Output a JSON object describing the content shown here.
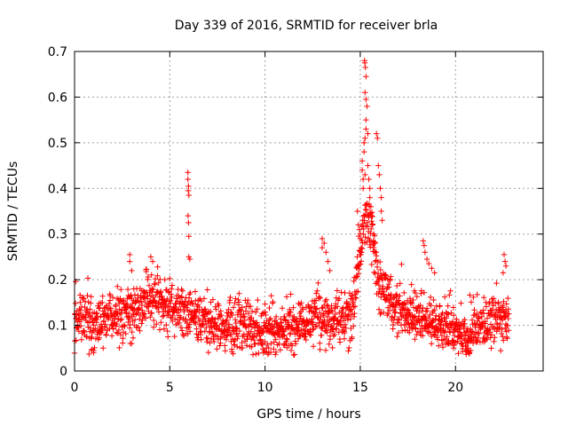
{
  "colors": {
    "series": "#ff0000",
    "grid": "#a0a0a0",
    "axis": "#000000"
  },
  "chart_data": {
    "type": "scatter",
    "title": "Day 339 of 2016, SRMTID for receiver brla",
    "xlabel": "GPS time / hours",
    "ylabel": "SRMTID / TECUs",
    "xlim": [
      0,
      24.6
    ],
    "ylim": [
      0,
      0.7
    ],
    "xticks": [
      0,
      5,
      10,
      15,
      20
    ],
    "xtick_labels": [
      "0",
      "5",
      "10",
      "15",
      "20"
    ],
    "yticks": [
      0,
      0.1,
      0.2,
      0.3,
      0.4,
      0.5,
      0.6,
      0.7
    ],
    "ytick_labels": [
      "0",
      "0.1",
      "0.2",
      "0.3",
      "0.4",
      "0.5",
      "0.6",
      "0.7"
    ],
    "grid": true,
    "marker": "+",
    "series": [
      {
        "name": "SRMTID",
        "profile": [
          [
            0.0,
            0.12
          ],
          [
            1.0,
            0.11
          ],
          [
            2.0,
            0.12
          ],
          [
            3.0,
            0.13
          ],
          [
            4.0,
            0.16
          ],
          [
            5.0,
            0.14
          ],
          [
            6.0,
            0.13
          ],
          [
            7.0,
            0.11
          ],
          [
            8.0,
            0.1
          ],
          [
            9.0,
            0.1
          ],
          [
            10.0,
            0.09
          ],
          [
            11.0,
            0.09
          ],
          [
            12.0,
            0.1
          ],
          [
            13.0,
            0.12
          ],
          [
            14.0,
            0.11
          ],
          [
            14.6,
            0.13
          ],
          [
            15.0,
            0.25
          ],
          [
            15.3,
            0.35
          ],
          [
            15.7,
            0.28
          ],
          [
            16.0,
            0.18
          ],
          [
            17.0,
            0.14
          ],
          [
            18.0,
            0.12
          ],
          [
            19.0,
            0.1
          ],
          [
            20.0,
            0.09
          ],
          [
            20.5,
            0.07
          ],
          [
            21.0,
            0.09
          ],
          [
            22.0,
            0.11
          ],
          [
            22.8,
            0.12
          ]
        ],
        "points": [
          [
            2.9,
            0.255
          ],
          [
            2.9,
            0.24
          ],
          [
            3.0,
            0.22
          ],
          [
            4.0,
            0.25
          ],
          [
            4.1,
            0.24
          ],
          [
            5.95,
            0.435
          ],
          [
            5.95,
            0.42
          ],
          [
            5.98,
            0.405
          ],
          [
            5.97,
            0.395
          ],
          [
            6.0,
            0.385
          ],
          [
            5.96,
            0.34
          ],
          [
            5.98,
            0.325
          ],
          [
            6.0,
            0.295
          ],
          [
            6.0,
            0.25
          ],
          [
            6.05,
            0.245
          ],
          [
            13.0,
            0.29
          ],
          [
            13.1,
            0.28
          ],
          [
            13.0,
            0.27
          ],
          [
            13.2,
            0.26
          ],
          [
            13.3,
            0.24
          ],
          [
            13.4,
            0.22
          ],
          [
            14.85,
            0.35
          ],
          [
            14.9,
            0.32
          ],
          [
            14.95,
            0.31
          ],
          [
            15.0,
            0.29
          ],
          [
            15.05,
            0.27
          ],
          [
            15.1,
            0.46
          ],
          [
            15.1,
            0.44
          ],
          [
            15.15,
            0.42
          ],
          [
            15.15,
            0.4
          ],
          [
            15.2,
            0.5
          ],
          [
            15.2,
            0.48
          ],
          [
            15.25,
            0.51
          ],
          [
            15.25,
            0.43
          ],
          [
            15.3,
            0.55
          ],
          [
            15.3,
            0.53
          ],
          [
            15.22,
            0.68
          ],
          [
            15.24,
            0.675
          ],
          [
            15.27,
            0.665
          ],
          [
            15.3,
            0.645
          ],
          [
            15.25,
            0.61
          ],
          [
            15.3,
            0.595
          ],
          [
            15.35,
            0.58
          ],
          [
            15.4,
            0.52
          ],
          [
            15.4,
            0.45
          ],
          [
            15.45,
            0.42
          ],
          [
            15.5,
            0.4
          ],
          [
            15.5,
            0.38
          ],
          [
            15.55,
            0.36
          ],
          [
            15.6,
            0.34
          ],
          [
            15.65,
            0.32
          ],
          [
            15.7,
            0.3
          ],
          [
            15.75,
            0.28
          ],
          [
            15.8,
            0.26
          ],
          [
            15.85,
            0.52
          ],
          [
            15.9,
            0.51
          ],
          [
            15.95,
            0.45
          ],
          [
            16.0,
            0.43
          ],
          [
            16.05,
            0.4
          ],
          [
            16.1,
            0.38
          ],
          [
            16.1,
            0.35
          ],
          [
            16.15,
            0.33
          ],
          [
            18.3,
            0.285
          ],
          [
            18.35,
            0.275
          ],
          [
            18.4,
            0.26
          ],
          [
            18.5,
            0.245
          ],
          [
            18.6,
            0.235
          ],
          [
            18.75,
            0.225
          ],
          [
            18.9,
            0.215
          ],
          [
            22.55,
            0.255
          ],
          [
            22.6,
            0.24
          ],
          [
            22.65,
            0.23
          ],
          [
            22.5,
            0.215
          ],
          [
            20.6,
            0.045
          ],
          [
            20.7,
            0.04
          ],
          [
            20.8,
            0.045
          ],
          [
            19.9,
            0.05
          ],
          [
            10.2,
            0.04
          ],
          [
            0.9,
            0.045
          ],
          [
            1.0,
            0.04
          ],
          [
            3.0,
            0.06
          ],
          [
            11.5,
            0.035
          ]
        ]
      }
    ]
  }
}
